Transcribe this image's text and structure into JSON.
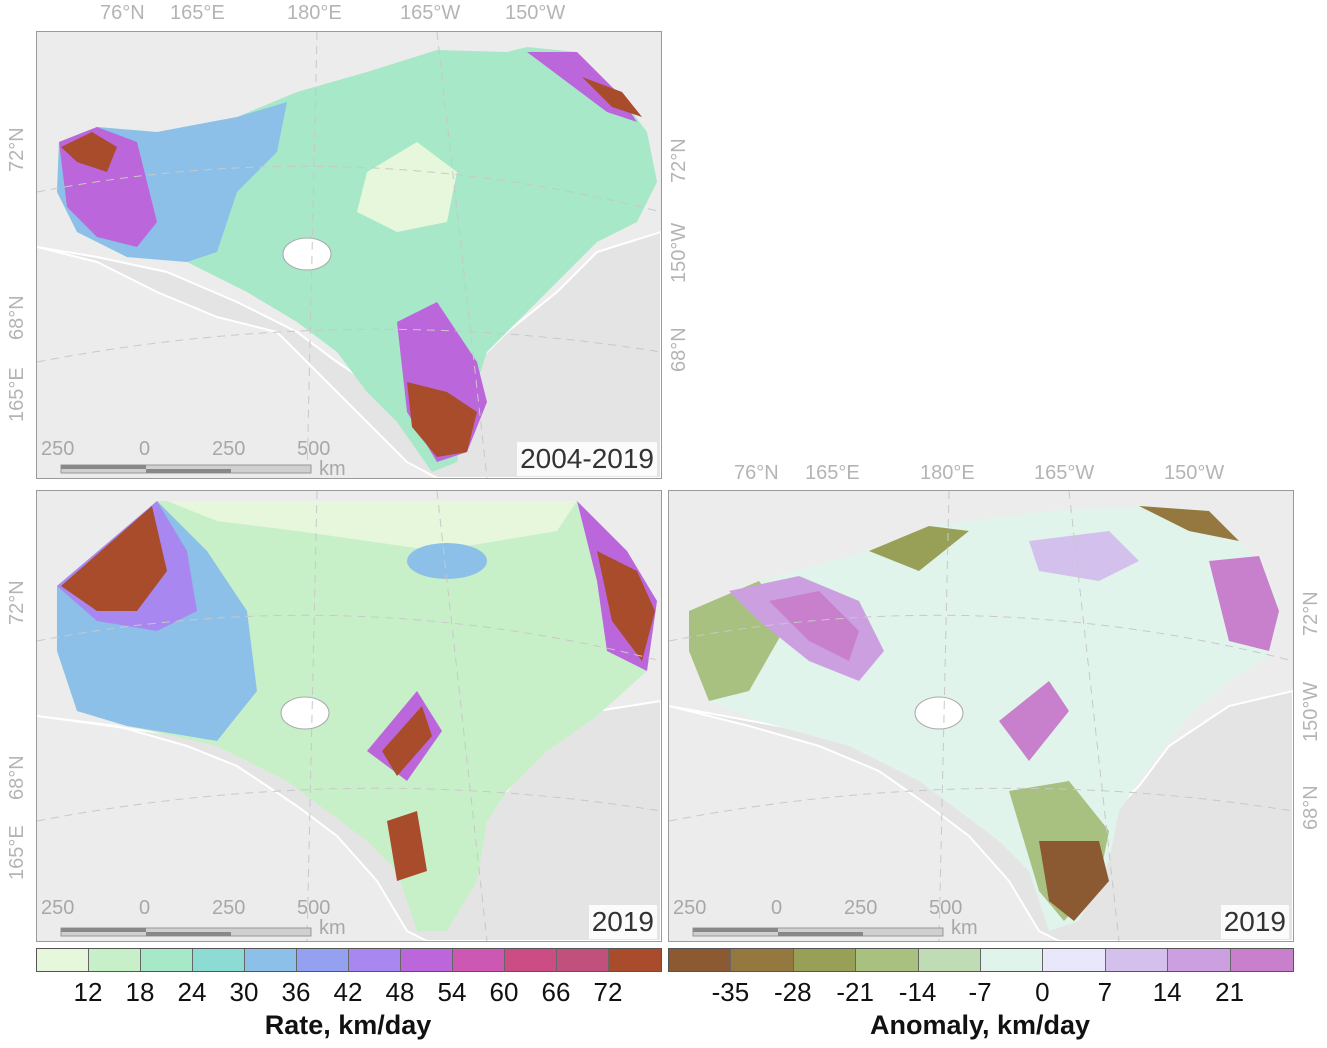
{
  "panels": {
    "top_left": {
      "tag": "2004-2019"
    },
    "bottom_left": {
      "tag": "2019"
    },
    "bottom_right": {
      "tag": "2019"
    }
  },
  "graticule": {
    "top": [
      "76°N",
      "165°E",
      "180°E",
      "165°W",
      "150°W"
    ],
    "left": [
      "72°N",
      "68°N",
      "165°E"
    ],
    "right": [
      "72°N",
      "150°W",
      "68°N"
    ]
  },
  "scalebar": {
    "labels": [
      "250",
      "0",
      "250",
      "500"
    ],
    "unit": "km"
  },
  "legend_rate": {
    "title": "Rate, km/day",
    "ticks": [
      "12",
      "18",
      "24",
      "30",
      "36",
      "42",
      "48",
      "54",
      "60",
      "66",
      "72"
    ],
    "colors": [
      "#e6f7dc",
      "#c8f0c8",
      "#a6e8c8",
      "#8cdcd4",
      "#8cc0e8",
      "#94a0f0",
      "#a888f0",
      "#bc66dc",
      "#cc58b4",
      "#cc4c84",
      "#c0507c",
      "#a84c2c"
    ]
  },
  "legend_anomaly": {
    "title": "Anomaly, km/day",
    "ticks": [
      "-35",
      "-28",
      "-21",
      "-14",
      "-7",
      "0",
      "7",
      "14",
      "21"
    ],
    "colors": [
      "#8c5a32",
      "#947840",
      "#98a058",
      "#a8c080",
      "#c0dcb4",
      "#e0f4ec",
      "#e8e8fa",
      "#d4c0ec",
      "#cca0e0",
      "#c880cc"
    ]
  }
}
